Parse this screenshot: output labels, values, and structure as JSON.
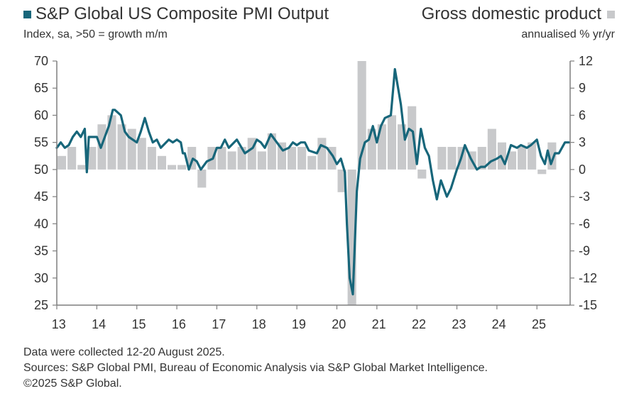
{
  "title": "S&P Global US Composite PMI Output",
  "subtitle": "Index, sa, >50 = growth m/m",
  "right_title": "Gross domestic product",
  "right_subtitle": "annualised % yr/yr",
  "notes": [
    "Data were collected 12-20 August 2025.",
    "Sources: S&P Global PMI, Bureau of Economic Analysis via S&P Global Market Intelligence.",
    "©2025 S&P Global."
  ],
  "colors": {
    "pmi": "#17667a",
    "gdp": "#c8c9cb",
    "axis": "#7f7f7f",
    "text": "#333333"
  },
  "chart_data": {
    "type": "bar",
    "x_tick_labels": [
      "13",
      "14",
      "15",
      "16",
      "17",
      "18",
      "19",
      "20",
      "21",
      "22",
      "23",
      "24",
      "25"
    ],
    "x_range": [
      2013.0,
      2025.83
    ],
    "y_left": {
      "range": [
        25,
        70
      ],
      "ticks": [
        70,
        65,
        60,
        55,
        50,
        45,
        40,
        35,
        30,
        25
      ]
    },
    "y_right": {
      "range": [
        -15,
        12
      ],
      "ticks": [
        12,
        9,
        6,
        3,
        0,
        -3,
        -6,
        -9,
        -12,
        -15
      ]
    },
    "series": [
      {
        "name": "S&P Global US Composite PMI Output",
        "type": "line",
        "axis": "left",
        "x": [
          2013.0,
          2013.1,
          2013.2,
          2013.3,
          2013.4,
          2013.5,
          2013.6,
          2013.7,
          2013.75,
          2013.8,
          2013.9,
          2014.0,
          2014.1,
          2014.2,
          2014.3,
          2014.4,
          2014.45,
          2014.6,
          2014.7,
          2014.8,
          2015.0,
          2015.1,
          2015.2,
          2015.3,
          2015.4,
          2015.5,
          2015.6,
          2015.8,
          2015.9,
          2016.0,
          2016.1,
          2016.15,
          2016.2,
          2016.3,
          2016.4,
          2016.5,
          2016.6,
          2016.75,
          2016.9,
          2017.0,
          2017.1,
          2017.2,
          2017.3,
          2017.5,
          2017.7,
          2017.9,
          2018.0,
          2018.1,
          2018.2,
          2018.35,
          2018.5,
          2018.65,
          2018.8,
          2018.9,
          2019.0,
          2019.1,
          2019.2,
          2019.3,
          2019.5,
          2019.6,
          2019.75,
          2019.9,
          2020.0,
          2020.1,
          2020.2,
          2020.25,
          2020.32,
          2020.4,
          2020.5,
          2020.58,
          2020.7,
          2020.8,
          2020.9,
          2021.0,
          2021.1,
          2021.2,
          2021.35,
          2021.45,
          2021.6,
          2021.7,
          2021.8,
          2021.9,
          2022.0,
          2022.1,
          2022.2,
          2022.3,
          2022.4,
          2022.5,
          2022.6,
          2022.65,
          2022.75,
          2022.85,
          2023.0,
          2023.1,
          2023.2,
          2023.35,
          2023.5,
          2023.6,
          2023.7,
          2023.85,
          2024.0,
          2024.1,
          2024.2,
          2024.35,
          2024.5,
          2024.6,
          2024.75,
          2024.85,
          2025.0,
          2025.1,
          2025.2,
          2025.27,
          2025.35,
          2025.45,
          2025.55,
          2025.7,
          2025.8
        ],
        "values": [
          54.0,
          55.0,
          54.0,
          54.5,
          56.0,
          57.0,
          56.0,
          57.5,
          49.5,
          56.0,
          56.0,
          56.0,
          54.0,
          56.0,
          58.0,
          61.0,
          61.0,
          60.0,
          57.0,
          56.0,
          55.0,
          57.0,
          59.5,
          57.0,
          55.0,
          55.5,
          54.0,
          55.5,
          55.0,
          55.5,
          55.0,
          53.0,
          53.0,
          50.0,
          52.0,
          51.5,
          50.0,
          51.5,
          52.0,
          54.0,
          54.0,
          55.5,
          54.0,
          55.5,
          53.0,
          54.0,
          55.5,
          55.0,
          54.0,
          56.5,
          55.0,
          53.5,
          54.0,
          55.0,
          54.5,
          55.0,
          55.0,
          53.5,
          53.0,
          54.5,
          54.0,
          52.5,
          51.0,
          52.0,
          49.5,
          40.0,
          30.0,
          27.0,
          46.0,
          52.0,
          55.0,
          55.5,
          58.0,
          55.0,
          58.0,
          59.5,
          60.0,
          68.5,
          62.0,
          55.5,
          57.5,
          57.0,
          51.0,
          57.5,
          54.0,
          52.5,
          48.0,
          44.5,
          48.0,
          47.0,
          45.0,
          46.5,
          50.0,
          52.0,
          54.5,
          52.0,
          50.0,
          50.5,
          50.5,
          51.5,
          52.0,
          52.5,
          51.0,
          54.5,
          54.0,
          54.5,
          54.0,
          54.5,
          55.5,
          52.5,
          51.0,
          53.5,
          51.0,
          53.0,
          53.0,
          55.0,
          55.0
        ]
      },
      {
        "name": "Gross domestic product",
        "type": "bar",
        "axis": "right",
        "x": [
          2013.125,
          2013.375,
          2013.625,
          2013.875,
          2014.125,
          2014.375,
          2014.625,
          2014.875,
          2015.125,
          2015.375,
          2015.625,
          2015.875,
          2016.125,
          2016.375,
          2016.625,
          2016.875,
          2017.125,
          2017.375,
          2017.625,
          2017.875,
          2018.125,
          2018.375,
          2018.625,
          2018.875,
          2019.125,
          2019.375,
          2019.625,
          2019.875,
          2020.125,
          2020.375,
          2020.625,
          2020.875,
          2021.125,
          2021.375,
          2021.625,
          2021.875,
          2022.125,
          2022.375,
          2022.625,
          2022.875,
          2023.125,
          2023.375,
          2023.625,
          2023.875,
          2024.125,
          2024.375,
          2024.625,
          2024.875,
          2025.125,
          2025.375
        ],
        "values": [
          1.5,
          2.5,
          0.5,
          2.5,
          5.0,
          6.0,
          5.0,
          4.5,
          3.5,
          2.5,
          1.5,
          0.5,
          0.5,
          2.5,
          -2.0,
          2.5,
          2.5,
          2.0,
          2.5,
          3.5,
          2.0,
          4.0,
          3.0,
          2.5,
          2.5,
          1.5,
          3.5,
          2.5,
          -2.5,
          -15.5,
          12.0,
          4.5,
          5.0,
          6.0,
          5.0,
          7.0,
          -1.0,
          0.0,
          2.5,
          2.5,
          2.5,
          2.0,
          2.5,
          4.5,
          3.0,
          2.0,
          2.5,
          3.0,
          -0.5,
          3.0
        ]
      }
    ]
  }
}
